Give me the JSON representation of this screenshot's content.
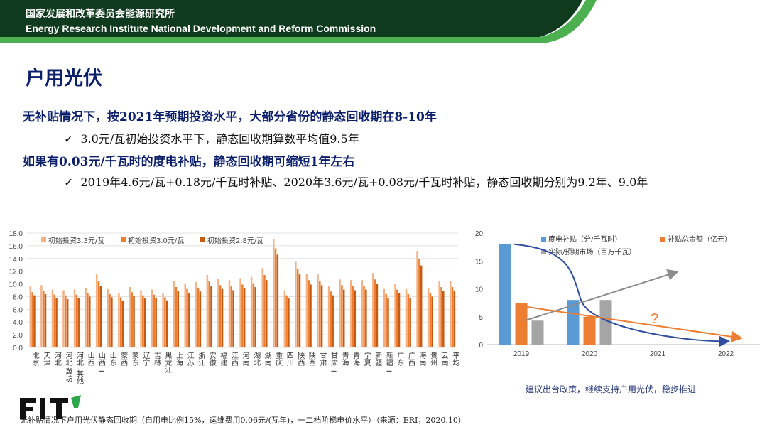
{
  "header": {
    "org_cn": "国家发展和改革委员会能源研究所",
    "org_en": "Energy Research Institute National Development and Reform Commission",
    "bg_color": "#0f3a1e",
    "accent_color": "#4caf50"
  },
  "title": "户用光伏",
  "content": {
    "line1": "无补贴情况下，按2021年预期投资水平，大部分省份的静态回收期在8-10年",
    "line2": "3.0元/瓦初始投资水平下，静态回收期算数平均值9.5年",
    "line3": "如果有0.03元/千瓦时的度电补贴，静态回收期可缩短1年左右",
    "line4": "2019年4.6元/瓦+0.18元/千瓦时补贴、2020年3.6元/瓦+0.08元/千瓦时补贴，静态回收期分别为9.2年、9.0年",
    "check_glyph": "✓"
  },
  "logo_text": "FIT",
  "chart_data": [
    {
      "type": "bar",
      "ylim": [
        0,
        18
      ],
      "yticks": [
        "0.0",
        "2.0",
        "4.0",
        "6.0",
        "8.0",
        "10.0",
        "12.0",
        "14.0",
        "16.0",
        "18.0"
      ],
      "legend_position": "top",
      "categories": [
        "北京",
        "天津",
        "河北II",
        "河北I冀坊",
        "河北II其他",
        "山西II",
        "山西III",
        "山东",
        "蒙西",
        "蒙东",
        "辽宁",
        "吉林",
        "黑龙江",
        "上海",
        "江苏",
        "浙江",
        "安徽",
        "福建",
        "江西",
        "河南",
        "湖北",
        "湖南",
        "重庆",
        "四川",
        "陕西II",
        "陕西II",
        "甘肃II",
        "甘肃III",
        "青海I",
        "青海II",
        "宁夏",
        "新疆II",
        "新疆III",
        "广东",
        "广西",
        "海南",
        "贵州",
        "云南",
        "平均"
      ],
      "series": [
        {
          "name": "初始投资3.3元/瓦",
          "color": "#f4b183",
          "values": [
            9.6,
            9.8,
            9.1,
            9.0,
            9.1,
            9.3,
            11.5,
            9.2,
            8.6,
            9.5,
            9.0,
            9.1,
            8.6,
            10.4,
            10.1,
            10.3,
            11.4,
            10.8,
            10.6,
            10.9,
            11.1,
            12.5,
            17.1,
            9.0,
            13.5,
            11.6,
            11.5,
            9.6,
            10.7,
            10.6,
            10.6,
            11.7,
            9.2,
            10.0,
            9.2,
            15.2,
            9.4,
            10.4,
            10.4
          ]
        },
        {
          "name": "初始投资3.0元/瓦",
          "color": "#ed7d31",
          "values": [
            8.7,
            8.9,
            8.3,
            8.2,
            8.3,
            8.5,
            10.4,
            8.4,
            7.9,
            8.7,
            8.2,
            8.3,
            7.9,
            9.5,
            9.2,
            9.4,
            10.4,
            9.8,
            9.7,
            9.9,
            10.1,
            11.4,
            15.6,
            8.2,
            12.3,
            10.6,
            10.5,
            8.8,
            9.8,
            9.7,
            9.7,
            10.7,
            8.4,
            9.1,
            8.4,
            13.9,
            8.6,
            9.5,
            9.5
          ]
        },
        {
          "name": "初始投资2.8元/瓦",
          "color": "#c55a11",
          "values": [
            8.2,
            8.4,
            7.8,
            7.6,
            7.8,
            8.0,
            9.7,
            7.9,
            7.3,
            8.1,
            7.7,
            7.8,
            7.4,
            8.9,
            8.6,
            8.8,
            9.7,
            9.2,
            9.0,
            9.3,
            9.5,
            10.6,
            14.6,
            7.7,
            11.5,
            9.9,
            9.8,
            8.2,
            9.1,
            9.0,
            9.1,
            10.0,
            7.8,
            8.5,
            7.8,
            12.9,
            8.0,
            8.9,
            8.9
          ]
        }
      ],
      "caption": "无补贴情况下户用光伏静态回收期（自用电比例15%，运维费用0.06元/(瓦年)，一二档阶梯电价水平）（来源：ERI，2020.10）"
    },
    {
      "type": "bar",
      "ylim": [
        0,
        20
      ],
      "yticks": [
        "0",
        "5",
        "10",
        "15",
        "20"
      ],
      "categories": [
        "2019",
        "2020",
        "2021",
        "2022"
      ],
      "series": [
        {
          "name": "度电补贴（分/千瓦时）",
          "color": "#5b9bd5",
          "values": [
            18,
            8,
            null,
            null
          ]
        },
        {
          "name": "补贴总金额（亿元）",
          "color": "#ed7d31",
          "values": [
            7.5,
            5,
            null,
            null
          ]
        },
        {
          "name": "实际/预期市场（百万千瓦）",
          "color": "#a5a5a5",
          "values": [
            4.3,
            8,
            null,
            null
          ]
        }
      ],
      "annotation": "?",
      "caption": "建议出台政策，继续支持户用光伏，稳步推进"
    }
  ]
}
